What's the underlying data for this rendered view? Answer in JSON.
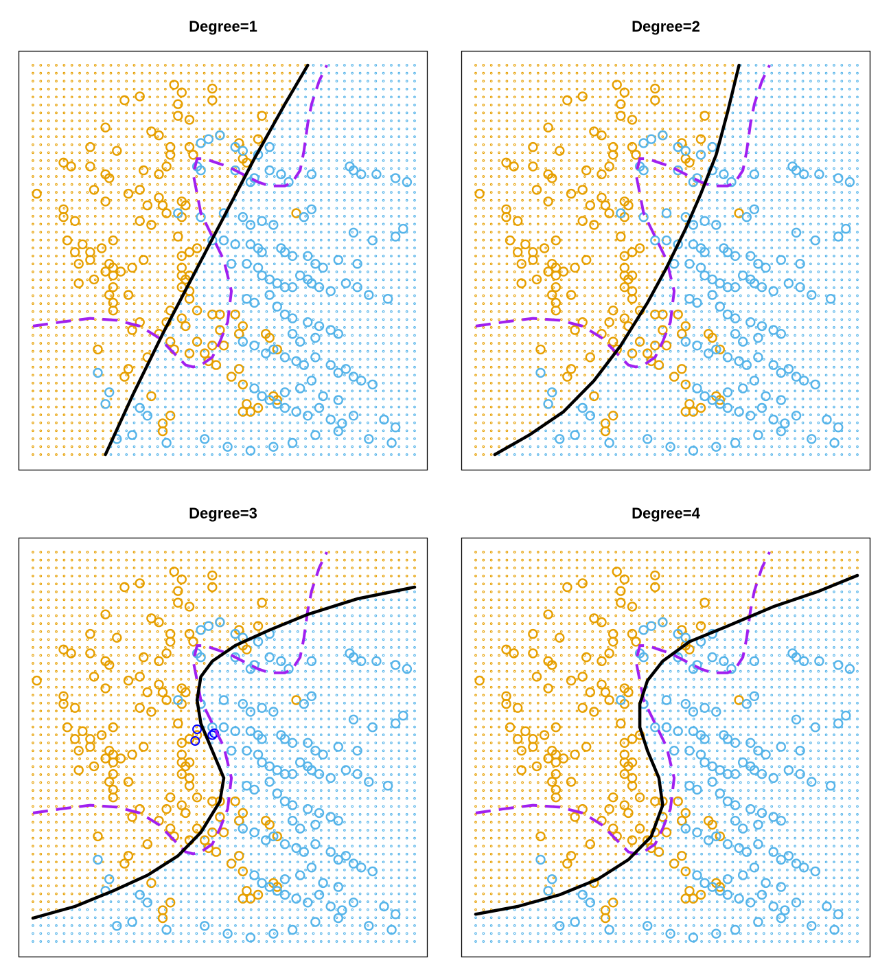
{
  "figure": {
    "colors": {
      "orange": "#E69F00",
      "blue": "#56B4E9",
      "purple": "#A020F0",
      "black": "#000000",
      "highlight": "#0000FF"
    },
    "icons": {
      "point_marker": "circle-o-glyph",
      "grid_marker": "small-dot"
    }
  },
  "chart_data": [
    {
      "type": "scatter",
      "title": "Degree=1",
      "xlim": [
        0,
        1
      ],
      "ylim": [
        0,
        1
      ],
      "xlabel": "",
      "ylabel": "",
      "axes": "none",
      "box": true,
      "background_grid": {
        "n": 50,
        "colors": [
          "orange",
          "blue"
        ]
      },
      "decision_boundary": {
        "degree": 1,
        "style": "solid",
        "color": "black",
        "x": [
          0.19,
          0.26,
          0.34,
          0.42,
          0.5,
          0.58,
          0.66,
          0.72
        ],
        "y": [
          0.0,
          0.15,
          0.31,
          0.46,
          0.61,
          0.76,
          0.9,
          1.0
        ]
      },
      "bayes_boundary": "bayes",
      "highlighted_points": []
    },
    {
      "type": "scatter",
      "title": "Degree=2",
      "xlim": [
        0,
        1
      ],
      "ylim": [
        0,
        1
      ],
      "xlabel": "",
      "ylabel": "",
      "axes": "none",
      "box": true,
      "background_grid": {
        "n": 50,
        "colors": [
          "orange",
          "blue"
        ]
      },
      "decision_boundary": {
        "degree": 2,
        "style": "solid",
        "color": "black",
        "x": [
          0.05,
          0.14,
          0.23,
          0.31,
          0.38,
          0.45,
          0.5,
          0.55,
          0.59,
          0.63,
          0.66,
          0.69
        ],
        "y": [
          0.0,
          0.05,
          0.11,
          0.19,
          0.28,
          0.39,
          0.48,
          0.58,
          0.67,
          0.77,
          0.88,
          1.0
        ]
      },
      "bayes_boundary": "bayes",
      "highlighted_points": []
    },
    {
      "type": "scatter",
      "title": "Degree=3",
      "xlim": [
        0,
        1
      ],
      "ylim": [
        0,
        1
      ],
      "xlabel": "",
      "ylabel": "",
      "axes": "none",
      "box": true,
      "background_grid": {
        "n": 50,
        "colors": [
          "orange",
          "blue"
        ]
      },
      "decision_boundary": {
        "degree": 3,
        "style": "solid",
        "color": "black",
        "x": [
          0.0,
          0.11,
          0.21,
          0.3,
          0.38,
          0.44,
          0.49,
          0.5,
          0.47,
          0.44,
          0.43,
          0.44,
          0.47,
          0.53,
          0.62,
          0.72,
          0.85,
          1.0
        ],
        "y": [
          0.06,
          0.09,
          0.13,
          0.17,
          0.22,
          0.28,
          0.36,
          0.42,
          0.49,
          0.56,
          0.62,
          0.68,
          0.72,
          0.76,
          0.8,
          0.84,
          0.88,
          0.91
        ]
      },
      "bayes_boundary": "bayes",
      "highlighted_points": [
        {
          "x": 0.43,
          "y": 0.545
        },
        {
          "x": 0.425,
          "y": 0.515
        },
        {
          "x": 0.475,
          "y": 0.535
        },
        {
          "x": 0.47,
          "y": 0.53
        }
      ]
    },
    {
      "type": "scatter",
      "title": "Degree=4",
      "xlim": [
        0,
        1
      ],
      "ylim": [
        0,
        1
      ],
      "xlabel": "",
      "ylabel": "",
      "axes": "none",
      "box": true,
      "background_grid": {
        "n": 50,
        "colors": [
          "orange",
          "blue"
        ]
      },
      "decision_boundary": {
        "degree": 4,
        "style": "solid",
        "color": "black",
        "x": [
          0.0,
          0.11,
          0.22,
          0.32,
          0.4,
          0.46,
          0.49,
          0.48,
          0.45,
          0.43,
          0.43,
          0.45,
          0.49,
          0.56,
          0.66,
          0.78,
          0.9,
          1.0
        ],
        "y": [
          0.07,
          0.09,
          0.12,
          0.16,
          0.21,
          0.27,
          0.35,
          0.42,
          0.49,
          0.55,
          0.61,
          0.67,
          0.72,
          0.77,
          0.81,
          0.86,
          0.9,
          0.94
        ]
      },
      "bayes_boundary": "bayes",
      "highlighted_points": []
    }
  ],
  "shared": {
    "bayes": {
      "style": "dashed",
      "color": "purple",
      "x": [
        0.0,
        0.07,
        0.15,
        0.22,
        0.28,
        0.33,
        0.37,
        0.4,
        0.42,
        0.44,
        0.47,
        0.49,
        0.51,
        0.52,
        0.5,
        0.47,
        0.44,
        0.43,
        0.42,
        0.43,
        0.45,
        0.48,
        0.51,
        0.55,
        0.59,
        0.62,
        0.66,
        0.68,
        0.7,
        0.71,
        0.72,
        0.73,
        0.75,
        0.77
      ],
      "y": [
        0.33,
        0.34,
        0.35,
        0.345,
        0.33,
        0.3,
        0.26,
        0.23,
        0.225,
        0.23,
        0.25,
        0.29,
        0.34,
        0.42,
        0.5,
        0.56,
        0.62,
        0.67,
        0.72,
        0.76,
        0.76,
        0.75,
        0.74,
        0.72,
        0.7,
        0.69,
        0.69,
        0.7,
        0.73,
        0.78,
        0.85,
        0.9,
        0.96,
        1.0
      ]
    },
    "points_orange": [
      [
        0.37,
        0.95
      ],
      [
        0.47,
        0.94
      ],
      [
        0.28,
        0.92
      ],
      [
        0.39,
        0.93
      ],
      [
        0.38,
        0.9
      ],
      [
        0.24,
        0.91
      ],
      [
        0.47,
        0.91
      ],
      [
        0.38,
        0.87
      ],
      [
        0.41,
        0.86
      ],
      [
        0.6,
        0.87
      ],
      [
        0.19,
        0.84
      ],
      [
        0.31,
        0.83
      ],
      [
        0.33,
        0.82
      ],
      [
        0.49,
        0.82
      ],
      [
        0.54,
        0.8
      ],
      [
        0.59,
        0.81
      ],
      [
        0.15,
        0.79
      ],
      [
        0.36,
        0.79
      ],
      [
        0.41,
        0.79
      ],
      [
        0.22,
        0.78
      ],
      [
        0.36,
        0.77
      ],
      [
        0.42,
        0.77
      ],
      [
        0.55,
        0.76
      ],
      [
        0.56,
        0.75
      ],
      [
        0.08,
        0.75
      ],
      [
        0.15,
        0.74
      ],
      [
        0.19,
        0.72
      ],
      [
        0.35,
        0.74
      ],
      [
        0.29,
        0.73
      ],
      [
        0.33,
        0.72
      ],
      [
        0.1,
        0.74
      ],
      [
        0.2,
        0.71
      ],
      [
        0.01,
        0.67
      ],
      [
        0.16,
        0.68
      ],
      [
        0.25,
        0.67
      ],
      [
        0.28,
        0.68
      ],
      [
        0.33,
        0.66
      ],
      [
        0.39,
        0.65
      ],
      [
        0.4,
        0.64
      ],
      [
        0.19,
        0.65
      ],
      [
        0.3,
        0.64
      ],
      [
        0.34,
        0.64
      ],
      [
        0.35,
        0.62
      ],
      [
        0.08,
        0.63
      ],
      [
        0.08,
        0.61
      ],
      [
        0.11,
        0.6
      ],
      [
        0.28,
        0.6
      ],
      [
        0.39,
        0.61
      ],
      [
        0.31,
        0.59
      ],
      [
        0.69,
        0.62
      ],
      [
        0.38,
        0.56
      ],
      [
        0.09,
        0.55
      ],
      [
        0.13,
        0.54
      ],
      [
        0.18,
        0.53
      ],
      [
        0.21,
        0.55
      ],
      [
        0.11,
        0.52
      ],
      [
        0.15,
        0.52
      ],
      [
        0.15,
        0.5
      ],
      [
        0.39,
        0.51
      ],
      [
        0.29,
        0.5
      ],
      [
        0.41,
        0.52
      ],
      [
        0.43,
        0.53
      ],
      [
        0.12,
        0.49
      ],
      [
        0.2,
        0.49
      ],
      [
        0.21,
        0.48
      ],
      [
        0.26,
        0.48
      ],
      [
        0.23,
        0.47
      ],
      [
        0.39,
        0.48
      ],
      [
        0.39,
        0.46
      ],
      [
        0.19,
        0.47
      ],
      [
        0.41,
        0.46
      ],
      [
        0.4,
        0.45
      ],
      [
        0.21,
        0.46
      ],
      [
        0.16,
        0.45
      ],
      [
        0.12,
        0.44
      ],
      [
        0.39,
        0.43
      ],
      [
        0.21,
        0.43
      ],
      [
        0.41,
        0.42
      ],
      [
        0.2,
        0.41
      ],
      [
        0.25,
        0.41
      ],
      [
        0.41,
        0.4
      ],
      [
        0.21,
        0.39
      ],
      [
        0.21,
        0.37
      ],
      [
        0.36,
        0.37
      ],
      [
        0.43,
        0.37
      ],
      [
        0.47,
        0.36
      ],
      [
        0.49,
        0.36
      ],
      [
        0.39,
        0.35
      ],
      [
        0.4,
        0.33
      ],
      [
        0.28,
        0.34
      ],
      [
        0.35,
        0.34
      ],
      [
        0.26,
        0.32
      ],
      [
        0.49,
        0.32
      ],
      [
        0.54,
        0.31
      ],
      [
        0.53,
        0.36
      ],
      [
        0.55,
        0.33
      ],
      [
        0.33,
        0.31
      ],
      [
        0.36,
        0.29
      ],
      [
        0.43,
        0.29
      ],
      [
        0.47,
        0.28
      ],
      [
        0.5,
        0.28
      ],
      [
        0.37,
        0.27
      ],
      [
        0.41,
        0.26
      ],
      [
        0.45,
        0.26
      ],
      [
        0.46,
        0.24
      ],
      [
        0.48,
        0.23
      ],
      [
        0.54,
        0.22
      ],
      [
        0.55,
        0.18
      ],
      [
        0.61,
        0.31
      ],
      [
        0.64,
        0.27
      ],
      [
        0.62,
        0.3
      ],
      [
        0.25,
        0.22
      ],
      [
        0.17,
        0.27
      ],
      [
        0.3,
        0.25
      ],
      [
        0.24,
        0.2
      ],
      [
        0.52,
        0.2
      ],
      [
        0.63,
        0.15
      ],
      [
        0.64,
        0.14
      ],
      [
        0.31,
        0.15
      ],
      [
        0.56,
        0.13
      ],
      [
        0.55,
        0.11
      ],
      [
        0.57,
        0.11
      ],
      [
        0.59,
        0.12
      ],
      [
        0.36,
        0.1
      ],
      [
        0.34,
        0.08
      ],
      [
        0.34,
        0.06
      ]
    ],
    "points_blue": [
      [
        0.44,
        0.8
      ],
      [
        0.46,
        0.81
      ],
      [
        0.49,
        0.82
      ],
      [
        0.53,
        0.79
      ],
      [
        0.55,
        0.78
      ],
      [
        0.59,
        0.77
      ],
      [
        0.62,
        0.79
      ],
      [
        0.43,
        0.74
      ],
      [
        0.44,
        0.73
      ],
      [
        0.53,
        0.73
      ],
      [
        0.57,
        0.7
      ],
      [
        0.58,
        0.71
      ],
      [
        0.62,
        0.73
      ],
      [
        0.65,
        0.72
      ],
      [
        0.67,
        0.7
      ],
      [
        0.73,
        0.72
      ],
      [
        0.83,
        0.74
      ],
      [
        0.84,
        0.73
      ],
      [
        0.86,
        0.72
      ],
      [
        0.9,
        0.72
      ],
      [
        0.95,
        0.71
      ],
      [
        0.98,
        0.7
      ],
      [
        0.38,
        0.62
      ],
      [
        0.44,
        0.61
      ],
      [
        0.5,
        0.62
      ],
      [
        0.55,
        0.61
      ],
      [
        0.57,
        0.59
      ],
      [
        0.6,
        0.6
      ],
      [
        0.63,
        0.59
      ],
      [
        0.71,
        0.61
      ],
      [
        0.73,
        0.63
      ],
      [
        0.84,
        0.57
      ],
      [
        0.89,
        0.55
      ],
      [
        0.97,
        0.58
      ],
      [
        0.95,
        0.56
      ],
      [
        0.47,
        0.55
      ],
      [
        0.5,
        0.55
      ],
      [
        0.53,
        0.54
      ],
      [
        0.57,
        0.54
      ],
      [
        0.59,
        0.53
      ],
      [
        0.6,
        0.52
      ],
      [
        0.65,
        0.53
      ],
      [
        0.66,
        0.52
      ],
      [
        0.68,
        0.51
      ],
      [
        0.72,
        0.51
      ],
      [
        0.74,
        0.49
      ],
      [
        0.76,
        0.48
      ],
      [
        0.8,
        0.5
      ],
      [
        0.85,
        0.49
      ],
      [
        0.52,
        0.49
      ],
      [
        0.56,
        0.49
      ],
      [
        0.59,
        0.48
      ],
      [
        0.6,
        0.46
      ],
      [
        0.62,
        0.45
      ],
      [
        0.64,
        0.44
      ],
      [
        0.66,
        0.43
      ],
      [
        0.68,
        0.43
      ],
      [
        0.7,
        0.46
      ],
      [
        0.72,
        0.45
      ],
      [
        0.73,
        0.44
      ],
      [
        0.75,
        0.43
      ],
      [
        0.78,
        0.42
      ],
      [
        0.82,
        0.44
      ],
      [
        0.85,
        0.43
      ],
      [
        0.88,
        0.41
      ],
      [
        0.93,
        0.4
      ],
      [
        0.56,
        0.4
      ],
      [
        0.58,
        0.39
      ],
      [
        0.62,
        0.41
      ],
      [
        0.64,
        0.38
      ],
      [
        0.66,
        0.36
      ],
      [
        0.68,
        0.35
      ],
      [
        0.72,
        0.34
      ],
      [
        0.75,
        0.33
      ],
      [
        0.78,
        0.32
      ],
      [
        0.8,
        0.31
      ],
      [
        0.55,
        0.29
      ],
      [
        0.58,
        0.28
      ],
      [
        0.61,
        0.26
      ],
      [
        0.63,
        0.27
      ],
      [
        0.66,
        0.25
      ],
      [
        0.69,
        0.24
      ],
      [
        0.71,
        0.23
      ],
      [
        0.74,
        0.25
      ],
      [
        0.78,
        0.23
      ],
      [
        0.8,
        0.21
      ],
      [
        0.82,
        0.22
      ],
      [
        0.84,
        0.2
      ],
      [
        0.86,
        0.19
      ],
      [
        0.89,
        0.18
      ],
      [
        0.58,
        0.17
      ],
      [
        0.6,
        0.15
      ],
      [
        0.62,
        0.14
      ],
      [
        0.64,
        0.13
      ],
      [
        0.66,
        0.12
      ],
      [
        0.69,
        0.11
      ],
      [
        0.72,
        0.1
      ],
      [
        0.75,
        0.12
      ],
      [
        0.78,
        0.09
      ],
      [
        0.81,
        0.08
      ],
      [
        0.84,
        0.1
      ],
      [
        0.92,
        0.09
      ],
      [
        0.95,
        0.07
      ],
      [
        0.28,
        0.12
      ],
      [
        0.3,
        0.1
      ],
      [
        0.26,
        0.05
      ],
      [
        0.19,
        0.13
      ],
      [
        0.2,
        0.16
      ],
      [
        0.17,
        0.21
      ],
      [
        0.22,
        0.04
      ],
      [
        0.35,
        0.03
      ],
      [
        0.45,
        0.04
      ],
      [
        0.51,
        0.02
      ],
      [
        0.57,
        0.01
      ],
      [
        0.63,
        0.02
      ],
      [
        0.68,
        0.03
      ],
      [
        0.74,
        0.05
      ],
      [
        0.8,
        0.06
      ],
      [
        0.88,
        0.04
      ],
      [
        0.94,
        0.03
      ],
      [
        0.66,
        0.16
      ],
      [
        0.7,
        0.17
      ],
      [
        0.73,
        0.19
      ],
      [
        0.76,
        0.15
      ],
      [
        0.8,
        0.14
      ],
      [
        0.7,
        0.29
      ],
      [
        0.74,
        0.3
      ],
      [
        0.68,
        0.31
      ]
    ]
  }
}
